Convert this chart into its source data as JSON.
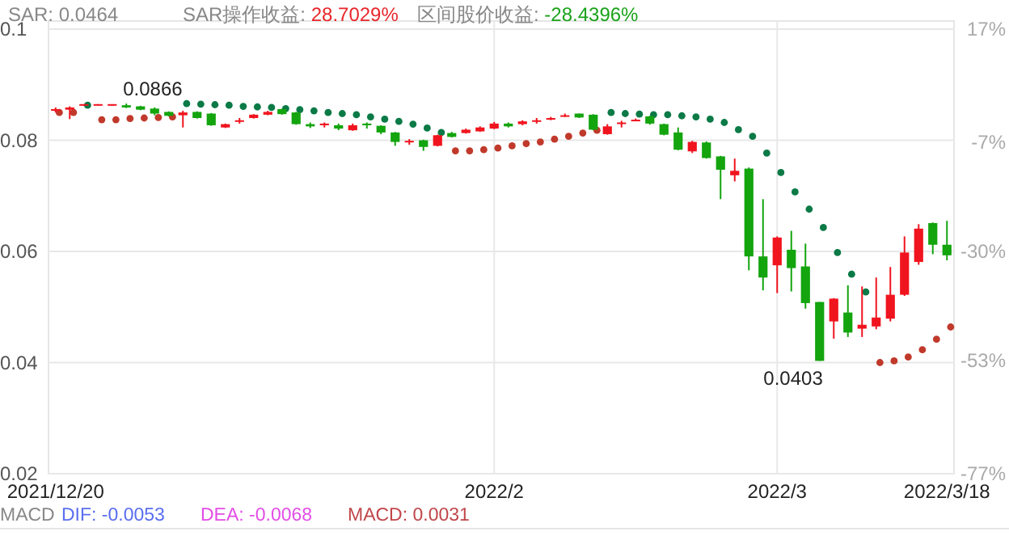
{
  "chart_data": {
    "type": "candlestick",
    "categories": [
      "2021/12/20",
      null,
      null,
      null,
      null,
      null,
      null,
      null,
      null,
      null,
      null,
      null,
      null,
      null,
      null,
      null,
      null,
      null,
      null,
      null,
      null,
      null,
      null,
      null,
      null,
      null,
      null,
      null,
      null,
      null,
      null,
      "2022/2",
      null,
      null,
      null,
      null,
      null,
      null,
      null,
      null,
      null,
      null,
      null,
      null,
      null,
      null,
      null,
      null,
      null,
      null,
      null,
      "2022/3",
      null,
      null,
      null,
      null,
      null,
      null,
      null,
      null,
      null,
      null,
      null,
      "2022/3/18"
    ],
    "ohlc": [
      [
        0.0853,
        0.0859,
        0.085,
        0.0856
      ],
      [
        0.0855,
        0.0861,
        0.0838,
        0.0859
      ],
      [
        0.0863,
        0.0865,
        0.0862,
        0.0865
      ],
      [
        0.0864,
        0.0865,
        0.0863,
        0.0865
      ],
      [
        0.0864,
        0.0865,
        0.0863,
        0.0865
      ],
      [
        0.0863,
        0.0866,
        0.0858,
        0.0859
      ],
      [
        0.0861,
        0.0862,
        0.0854,
        0.0855
      ],
      [
        0.0857,
        0.0859,
        0.0845,
        0.0848
      ],
      [
        0.0851,
        0.0852,
        0.0843,
        0.0844
      ],
      [
        0.0845,
        0.0853,
        0.0823,
        0.085
      ],
      [
        0.0851,
        0.0852,
        0.0839,
        0.084
      ],
      [
        0.0848,
        0.0849,
        0.0826,
        0.0827
      ],
      [
        0.0823,
        0.083,
        0.0822,
        0.0829
      ],
      [
        0.0834,
        0.084,
        0.083,
        0.0836
      ],
      [
        0.084,
        0.0847,
        0.0839,
        0.0846
      ],
      [
        0.0846,
        0.0853,
        0.0845,
        0.0851
      ],
      [
        0.0856,
        0.0857,
        0.0846,
        0.0847
      ],
      [
        0.085,
        0.0851,
        0.0828,
        0.0829
      ],
      [
        0.0829,
        0.0832,
        0.0822,
        0.0825
      ],
      [
        0.0827,
        0.0832,
        0.0823,
        0.083
      ],
      [
        0.0827,
        0.083,
        0.0818,
        0.0821
      ],
      [
        0.0818,
        0.083,
        0.0817,
        0.0827
      ],
      [
        0.083,
        0.0832,
        0.0821,
        0.0827
      ],
      [
        0.0826,
        0.0827,
        0.0811,
        0.0814
      ],
      [
        0.0814,
        0.0815,
        0.079,
        0.0797
      ],
      [
        0.0797,
        0.0802,
        0.0792,
        0.0799
      ],
      [
        0.08,
        0.0801,
        0.0781,
        0.0788
      ],
      [
        0.079,
        0.081,
        0.0789,
        0.0809
      ],
      [
        0.0813,
        0.0815,
        0.0805,
        0.0806
      ],
      [
        0.0813,
        0.0821,
        0.0812,
        0.0819
      ],
      [
        0.0816,
        0.0825,
        0.0815,
        0.0823
      ],
      [
        0.0821,
        0.0833,
        0.082,
        0.083
      ],
      [
        0.083,
        0.0832,
        0.0823,
        0.0825
      ],
      [
        0.0829,
        0.0836,
        0.0827,
        0.0834
      ],
      [
        0.0834,
        0.084,
        0.083,
        0.0836
      ],
      [
        0.0838,
        0.0842,
        0.0836,
        0.084
      ],
      [
        0.0844,
        0.0848,
        0.0842,
        0.0845
      ],
      [
        0.0848,
        0.0848,
        0.084,
        0.0841
      ],
      [
        0.0846,
        0.0847,
        0.0818,
        0.0819
      ],
      [
        0.0811,
        0.0829,
        0.081,
        0.0825
      ],
      [
        0.083,
        0.0835,
        0.0823,
        0.0832
      ],
      [
        0.0836,
        0.0839,
        0.0835,
        0.0837
      ],
      [
        0.0843,
        0.0844,
        0.0828,
        0.083
      ],
      [
        0.0829,
        0.083,
        0.0809,
        0.081
      ],
      [
        0.0814,
        0.0823,
        0.0782,
        0.0783
      ],
      [
        0.078,
        0.0799,
        0.0777,
        0.0797
      ],
      [
        0.0796,
        0.0798,
        0.0767,
        0.0768
      ],
      [
        0.0771,
        0.0772,
        0.0694,
        0.0747
      ],
      [
        0.0737,
        0.0767,
        0.0726,
        0.0745
      ],
      [
        0.0749,
        0.0751,
        0.0566,
        0.0591
      ],
      [
        0.0591,
        0.0694,
        0.053,
        0.0553
      ],
      [
        0.0575,
        0.0627,
        0.0525,
        0.0625
      ],
      [
        0.0603,
        0.0637,
        0.0528,
        0.057
      ],
      [
        0.0573,
        0.0614,
        0.0497,
        0.0507
      ],
      [
        0.0509,
        0.0509,
        0.0403,
        0.0403
      ],
      [
        0.0474,
        0.0516,
        0.0443,
        0.0515
      ],
      [
        0.049,
        0.0539,
        0.0446,
        0.0454
      ],
      [
        0.0461,
        0.0537,
        0.0446,
        0.0468
      ],
      [
        0.0465,
        0.0553,
        0.046,
        0.0481
      ],
      [
        0.0479,
        0.0572,
        0.0474,
        0.0522
      ],
      [
        0.0522,
        0.0627,
        0.052,
        0.0598
      ],
      [
        0.0581,
        0.0649,
        0.0576,
        0.0641
      ],
      [
        0.0651,
        0.0652,
        0.0595,
        0.0612
      ],
      [
        0.0612,
        0.0655,
        0.0584,
        0.0593
      ]
    ],
    "colors": [
      "#f0141e",
      "#f0141e",
      "#f0141e",
      "#f0141e",
      "#f0141e",
      "#13a40e",
      "#13a40e",
      "#13a40e",
      "#13a40e",
      "#f0141e",
      "#13a40e",
      "#13a40e",
      "#f0141e",
      "#f0141e",
      "#f0141e",
      "#f0141e",
      "#13a40e",
      "#13a40e",
      "#13a40e",
      "#f0141e",
      "#13a40e",
      "#f0141e",
      "#13a40e",
      "#13a40e",
      "#13a40e",
      "#f0141e",
      "#13a40e",
      "#f0141e",
      "#13a40e",
      "#f0141e",
      "#f0141e",
      "#f0141e",
      "#13a40e",
      "#f0141e",
      "#f0141e",
      "#f0141e",
      "#f0141e",
      "#13a40e",
      "#13a40e",
      "#f0141e",
      "#f0141e",
      "#f0141e",
      "#13a40e",
      "#13a40e",
      "#13a40e",
      "#f0141e",
      "#13a40e",
      "#13a40e",
      "#f0141e",
      "#13a40e",
      "#13a40e",
      "#f0141e",
      "#13a40e",
      "#13a40e",
      "#13a40e",
      "#f0141e",
      "#13a40e",
      "#f0141e",
      "#f0141e",
      "#f0141e",
      "#f0141e",
      "#f0141e",
      "#13a40e",
      "#13a40e"
    ],
    "series": [
      {
        "type": "scatter",
        "color": "#0b7a46",
        "marker": "circle",
        "values": [
          null,
          null,
          0.0863,
          null,
          null,
          null,
          null,
          null,
          null,
          0.0866,
          0.0865,
          0.0864,
          0.0863,
          0.0861,
          0.086,
          0.0859,
          0.0857,
          0.0855,
          0.0853,
          0.085,
          0.0848,
          0.0846,
          0.0842,
          0.0838,
          0.0834,
          0.0829,
          0.0822,
          0.0814,
          null,
          null,
          null,
          null,
          null,
          null,
          null,
          null,
          null,
          null,
          null,
          0.085,
          0.0848,
          0.0847,
          0.0846,
          0.0846,
          0.0844,
          0.0842,
          0.0838,
          0.0832,
          0.0819,
          0.0807,
          0.0777,
          0.0742,
          0.0707,
          0.0676,
          0.0643,
          0.0598,
          0.0559,
          0.0527,
          null,
          null,
          null,
          null,
          null,
          null
        ]
      },
      {
        "type": "scatter",
        "color": "#c0392b",
        "marker": "circle",
        "values": [
          0.085,
          0.085,
          null,
          0.0837,
          0.0837,
          0.0839,
          0.084,
          0.0841,
          0.0842,
          null,
          null,
          null,
          null,
          null,
          null,
          null,
          null,
          null,
          null,
          null,
          null,
          null,
          null,
          null,
          null,
          null,
          null,
          null,
          0.0781,
          0.0781,
          0.0783,
          0.0786,
          0.079,
          0.0794,
          0.0797,
          0.0802,
          0.0807,
          0.0813,
          0.0818,
          null,
          null,
          null,
          null,
          null,
          null,
          null,
          null,
          null,
          null,
          null,
          null,
          null,
          null,
          null,
          null,
          null,
          null,
          null,
          0.04,
          0.0403,
          0.041,
          0.0423,
          0.0442,
          0.0464
        ]
      }
    ],
    "ylim": [
      0.02,
      0.1
    ],
    "yticks": [
      0.02,
      0.04,
      0.06,
      0.08,
      0.1
    ],
    "y2lim": [
      -77,
      17
    ],
    "y2ticks": [
      {
        "value": -77,
        "label": "-77%"
      },
      {
        "value": -53,
        "label": "-53%"
      },
      {
        "value": -30,
        "label": "-30%"
      },
      {
        "value": -7,
        "label": "-7%"
      },
      {
        "value": 17,
        "label": "17%"
      }
    ],
    "grid": true,
    "value_labels": [
      null,
      null,
      null,
      null,
      null,
      "0.0866",
      null,
      null,
      null,
      null,
      null,
      null,
      null,
      null,
      null,
      null,
      null,
      null,
      null,
      null,
      null,
      null,
      null,
      null,
      null,
      null,
      null,
      null,
      null,
      null,
      null,
      null,
      null,
      null,
      null,
      null,
      null,
      null,
      null,
      null,
      null,
      null,
      null,
      null,
      null,
      null,
      null,
      null,
      null,
      null,
      null,
      null,
      null,
      null,
      "0.0403",
      null,
      null,
      null,
      null,
      null,
      null,
      null,
      null,
      null
    ],
    "annotations": [
      "SAR: 0.0464",
      "SAR操作收益: ",
      "28.7029%",
      "区间股价收益: ",
      "-28.4396%",
      "MACD",
      "DIF: -0.0053",
      "DEA: -0.0068",
      "MACD: 0.0031"
    ]
  }
}
